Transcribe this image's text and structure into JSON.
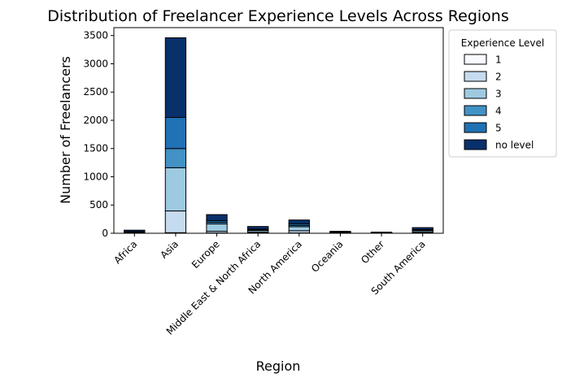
{
  "chart_data": {
    "type": "bar",
    "stacked": true,
    "title": "Distribution of Freelancer Experience Levels Across Regions",
    "xlabel": "Region",
    "ylabel": "Number of Freelancers",
    "ylim": [
      0,
      3640
    ],
    "yticks": [
      0,
      500,
      1000,
      1500,
      2000,
      2500,
      3000,
      3500
    ],
    "categories": [
      "Africa",
      "Asia",
      "Europe",
      "Middle East & North Africa",
      "North America",
      "Oceania",
      "Other",
      "South America"
    ],
    "legend": {
      "title": "Experience Level",
      "placement": "outside-top-right"
    },
    "series": [
      {
        "name": "1",
        "color": "#f7fbff",
        "values": [
          2,
          10,
          5,
          3,
          5,
          1,
          1,
          3
        ]
      },
      {
        "name": "2",
        "color": "#c6dbef",
        "values": [
          8,
          385,
          30,
          15,
          40,
          5,
          3,
          15
        ]
      },
      {
        "name": "3",
        "color": "#9ecae1",
        "values": [
          10,
          765,
          130,
          30,
          70,
          8,
          4,
          25
        ]
      },
      {
        "name": "4",
        "color": "#4292c6",
        "values": [
          5,
          340,
          30,
          10,
          25,
          3,
          2,
          10
        ]
      },
      {
        "name": "5",
        "color": "#2171b5",
        "values": [
          5,
          550,
          30,
          15,
          30,
          3,
          2,
          12
        ]
      },
      {
        "name": "no level",
        "color": "#08306b",
        "values": [
          25,
          1410,
          105,
          47,
          65,
          15,
          8,
          35
        ]
      }
    ]
  }
}
